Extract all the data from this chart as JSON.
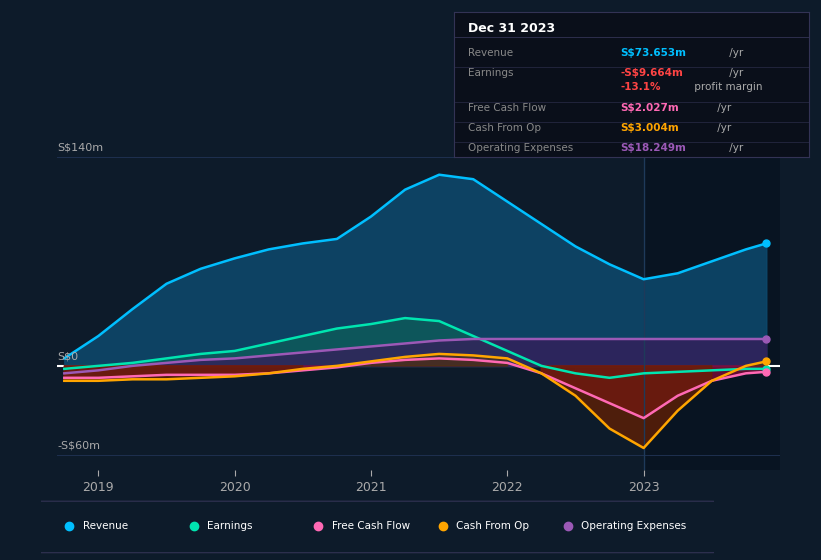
{
  "bg_color": "#0d1b2a",
  "grid_color": "#1e3050",
  "zero_line_color": "#ffffff",
  "ylim": [
    -70,
    155
  ],
  "yticks": [
    -60,
    0,
    140
  ],
  "ytick_labels": [
    "-S$60m",
    "S$0",
    "S$140m"
  ],
  "xticks": [
    2019,
    2020,
    2021,
    2022,
    2023
  ],
  "xlim": [
    2018.7,
    2024.0
  ],
  "shade_start": 2023.0,
  "x": [
    2018.75,
    2019.0,
    2019.25,
    2019.5,
    2019.75,
    2020.0,
    2020.25,
    2020.5,
    2020.75,
    2021.0,
    2021.25,
    2021.5,
    2021.75,
    2022.0,
    2022.25,
    2022.5,
    2022.75,
    2023.0,
    2023.25,
    2023.5,
    2023.75,
    2023.9
  ],
  "revenue": [
    5,
    20,
    38,
    55,
    65,
    72,
    78,
    82,
    85,
    100,
    118,
    128,
    125,
    110,
    95,
    80,
    68,
    58,
    62,
    70,
    78,
    82
  ],
  "earnings": [
    -2,
    0,
    2,
    5,
    8,
    10,
    15,
    20,
    25,
    28,
    32,
    30,
    20,
    10,
    0,
    -5,
    -8,
    -5,
    -4,
    -3,
    -2,
    -2
  ],
  "free_cash_flow": [
    -8,
    -8,
    -7,
    -6,
    -6,
    -6,
    -5,
    -3,
    -1,
    2,
    4,
    5,
    4,
    2,
    -5,
    -15,
    -25,
    -35,
    -20,
    -10,
    -5,
    -4
  ],
  "cash_from_op": [
    -10,
    -10,
    -9,
    -9,
    -8,
    -7,
    -5,
    -2,
    0,
    3,
    6,
    8,
    7,
    5,
    -5,
    -20,
    -42,
    -55,
    -30,
    -10,
    0,
    3
  ],
  "operating_expenses": [
    -5,
    -3,
    0,
    2,
    4,
    5,
    7,
    9,
    11,
    13,
    15,
    17,
    18,
    18,
    18,
    18,
    18,
    18,
    18,
    18,
    18,
    18
  ],
  "revenue_color": "#00bfff",
  "earnings_color": "#00e5b0",
  "fcf_color": "#ff69b4",
  "cashop_color": "#ffa500",
  "opex_color": "#9b59b6",
  "revenue_fill": "#0d4a6e",
  "earnings_fill": "#0d5a5a",
  "fcf_fill": "#8b0a3a",
  "cashop_fill_neg": "#6b2000",
  "opex_fill": "#3a1a5a",
  "table_bg": "#0a0f1a",
  "table_border": "#333355",
  "info_title": "Dec 31 2023",
  "info_rows": [
    {
      "label": "Revenue",
      "value": "S$73.653m",
      "unit": " /yr",
      "color": "#00bfff"
    },
    {
      "label": "Earnings",
      "value": "-S$9.664m",
      "unit": " /yr",
      "color": "#ff4444"
    },
    {
      "label": "",
      "value": "-13.1%",
      "unit": " profit margin",
      "color": "#ff4444"
    },
    {
      "label": "Free Cash Flow",
      "value": "S$2.027m",
      "unit": " /yr",
      "color": "#ff69b4"
    },
    {
      "label": "Cash From Op",
      "value": "S$3.004m",
      "unit": " /yr",
      "color": "#ffa500"
    },
    {
      "label": "Operating Expenses",
      "value": "S$18.249m",
      "unit": " /yr",
      "color": "#9b59b6"
    }
  ],
  "legend_items": [
    {
      "label": "Revenue",
      "color": "#00bfff"
    },
    {
      "label": "Earnings",
      "color": "#00e5b0"
    },
    {
      "label": "Free Cash Flow",
      "color": "#ff69b4"
    },
    {
      "label": "Cash From Op",
      "color": "#ffa500"
    },
    {
      "label": "Operating Expenses",
      "color": "#9b59b6"
    }
  ]
}
